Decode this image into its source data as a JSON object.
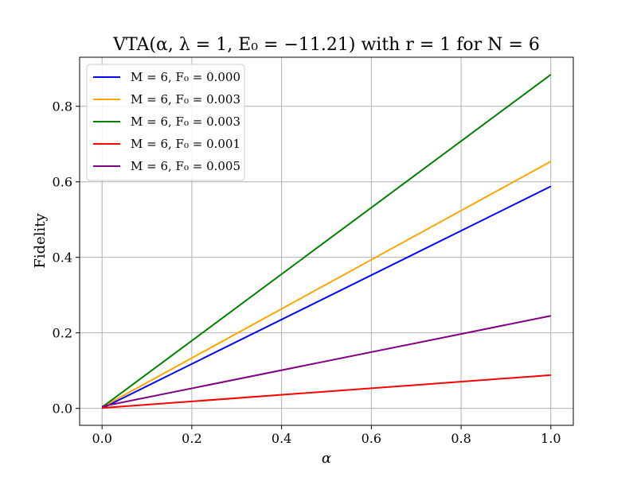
{
  "chart_data": {
    "type": "line",
    "title": "VTA(α, λ = 1,  E₀ = −11.21) with r = 1 for N = 6",
    "xlabel": "α",
    "ylabel": "Fidelity",
    "xlim": [
      -0.05,
      1.05
    ],
    "ylim": [
      -0.045,
      0.93
    ],
    "xticks": [
      0.0,
      0.2,
      0.4,
      0.6,
      0.8,
      1.0
    ],
    "xtick_labels": [
      "0.0",
      "0.2",
      "0.4",
      "0.6",
      "0.8",
      "1.0"
    ],
    "yticks": [
      0.0,
      0.2,
      0.4,
      0.6,
      0.8
    ],
    "ytick_labels": [
      "0.0",
      "0.2",
      "0.4",
      "0.6",
      "0.8"
    ],
    "grid": true,
    "legend_position": "top-left",
    "series": [
      {
        "name": "M = 6, F₀ =  0.000",
        "color": "#0000ff",
        "x": [
          0.0,
          1.0
        ],
        "y": [
          0.0,
          0.588
        ]
      },
      {
        "name": "M = 6, F₀ =  0.003",
        "color": "#ffa500",
        "x": [
          0.0,
          1.0
        ],
        "y": [
          0.003,
          0.654
        ]
      },
      {
        "name": "M = 6, F₀ =  0.003",
        "color": "#008000",
        "x": [
          0.0,
          1.0
        ],
        "y": [
          0.003,
          0.884
        ]
      },
      {
        "name": "M = 6, F₀ =  0.001",
        "color": "#ff0000",
        "x": [
          0.0,
          1.0
        ],
        "y": [
          0.001,
          0.088
        ]
      },
      {
        "name": "M = 6, F₀ =  0.005",
        "color": "#800080",
        "x": [
          0.0,
          1.0
        ],
        "y": [
          0.005,
          0.245
        ]
      }
    ]
  }
}
